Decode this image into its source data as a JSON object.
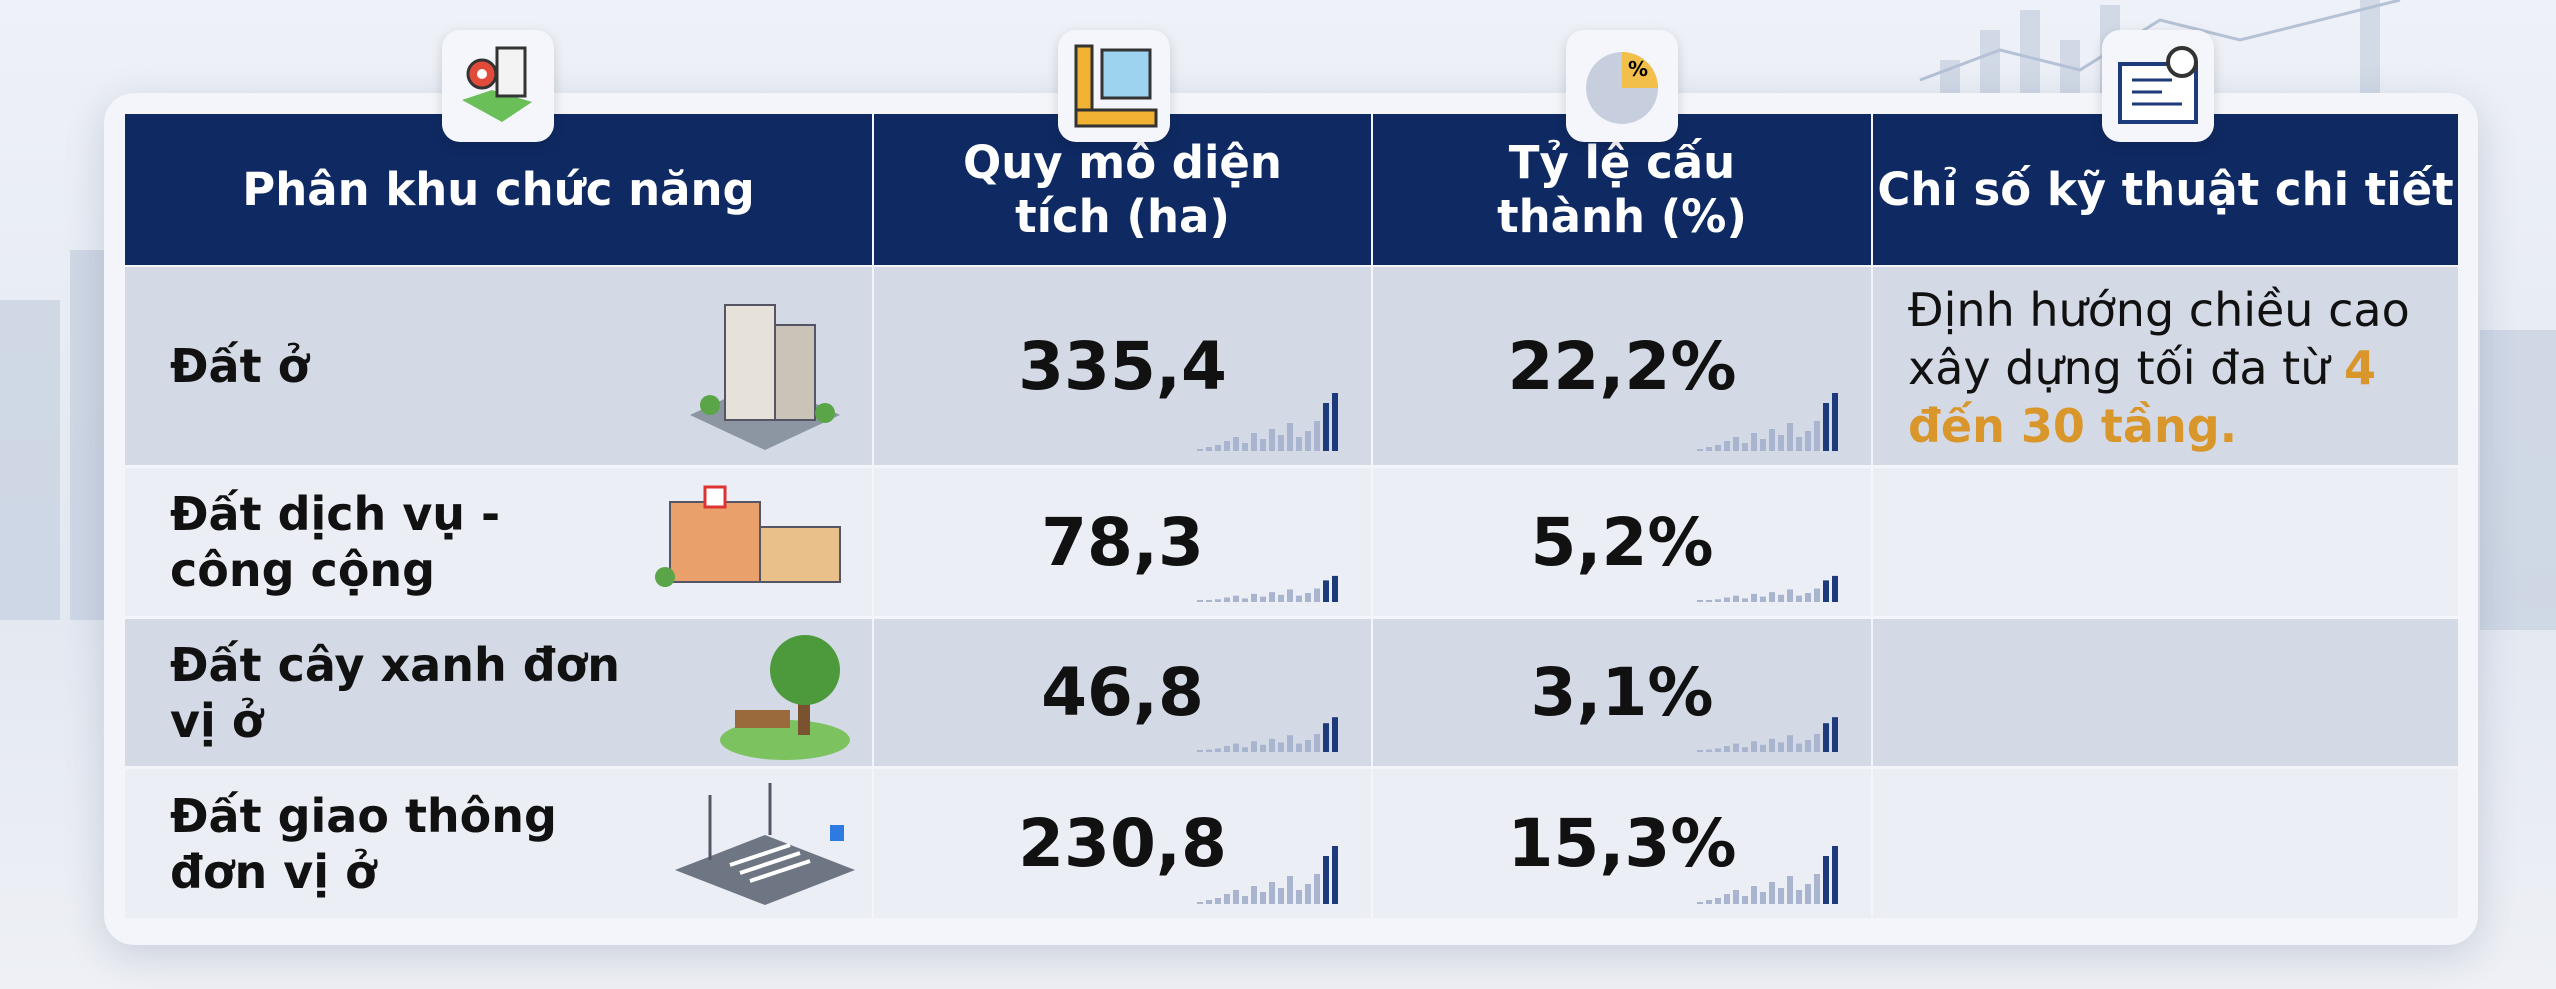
{
  "table": {
    "headers": [
      "Phân khu chức năng",
      "Quy mô diện tích (ha)",
      "Tỷ lệ cấu thành (%)",
      "Chỉ số kỹ thuật chi tiết"
    ],
    "rows": [
      [
        "Đất ở",
        "335,4",
        "22,2%"
      ],
      [
        "Đất dịch vụ - công cộng",
        "78,3",
        "5,2%"
      ],
      [
        "Đất cây xanh đơn vị ở",
        "46,8",
        "3,1%"
      ],
      [
        "Đất giao thông đơn vị ở",
        "230,8",
        "15,3%"
      ]
    ],
    "detail": {
      "text": "Định hướng chiều cao xây dựng tối đa từ ",
      "highlight": "4 đến 30 tầng."
    }
  }
}
